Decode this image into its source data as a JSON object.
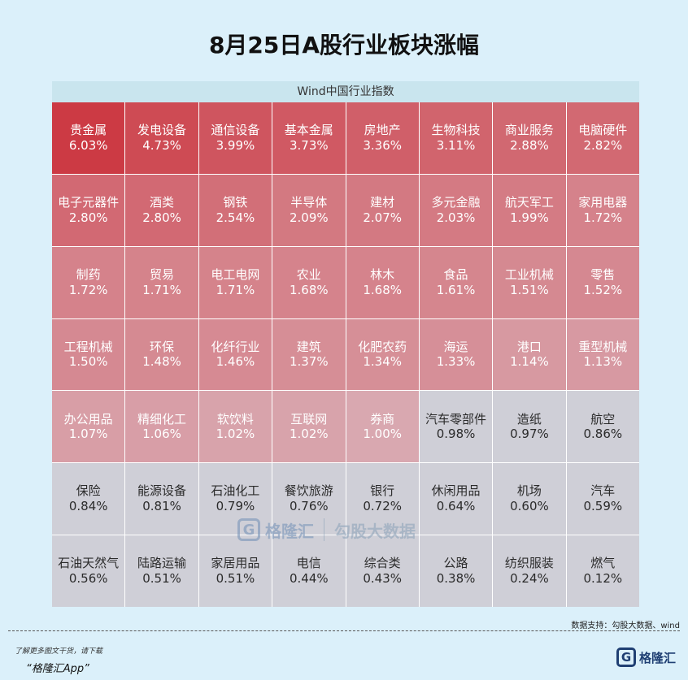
{
  "title": "8月25日A股行业板块涨幅",
  "source_note": "数据支持：勾股大数据、wind",
  "watermark": {
    "brand": "格隆汇",
    "logo_letter": "G",
    "right_text": "勾股大数据"
  },
  "footer": {
    "line1": "了解更多图文干货，请下载",
    "line2": "“格隆汇App”"
  },
  "logo": {
    "letter": "G",
    "text": "格隆汇"
  },
  "colors": {
    "high": "#cc3a44",
    "mid": "#d9a8b0",
    "low": "#cfcfd7"
  },
  "chart_data": {
    "type": "heatmap",
    "title": "Wind中国行业指数",
    "columns": 8,
    "unit": "%",
    "cells": [
      {
        "name": "贵金属",
        "value": 6.03
      },
      {
        "name": "发电设备",
        "value": 4.73
      },
      {
        "name": "通信设备",
        "value": 3.99
      },
      {
        "name": "基本金属",
        "value": 3.73
      },
      {
        "name": "房地产",
        "value": 3.36
      },
      {
        "name": "生物科技",
        "value": 3.11
      },
      {
        "name": "商业服务",
        "value": 2.88
      },
      {
        "name": "电脑硬件",
        "value": 2.82
      },
      {
        "name": "电子元器件",
        "value": 2.8
      },
      {
        "name": "酒类",
        "value": 2.8
      },
      {
        "name": "钢铁",
        "value": 2.54
      },
      {
        "name": "半导体",
        "value": 2.09
      },
      {
        "name": "建材",
        "value": 2.07
      },
      {
        "name": "多元金融",
        "value": 2.03
      },
      {
        "name": "航天军工",
        "value": 1.99
      },
      {
        "name": "家用电器",
        "value": 1.72
      },
      {
        "name": "制药",
        "value": 1.72
      },
      {
        "name": "贸易",
        "value": 1.71
      },
      {
        "name": "电工电网",
        "value": 1.71
      },
      {
        "name": "农业",
        "value": 1.68
      },
      {
        "name": "林木",
        "value": 1.68
      },
      {
        "name": "食品",
        "value": 1.61
      },
      {
        "name": "工业机械",
        "value": 1.51
      },
      {
        "name": "零售",
        "value": 1.52
      },
      {
        "name": "工程机械",
        "value": 1.5
      },
      {
        "name": "环保",
        "value": 1.48
      },
      {
        "name": "化纤行业",
        "value": 1.46
      },
      {
        "name": "建筑",
        "value": 1.37
      },
      {
        "name": "化肥农药",
        "value": 1.34
      },
      {
        "name": "海运",
        "value": 1.33
      },
      {
        "name": "港口",
        "value": 1.14
      },
      {
        "name": "重型机械",
        "value": 1.13
      },
      {
        "name": "办公用品",
        "value": 1.07
      },
      {
        "name": "精细化工",
        "value": 1.06
      },
      {
        "name": "软饮料",
        "value": 1.02
      },
      {
        "name": "互联网",
        "value": 1.02
      },
      {
        "name": "券商",
        "value": 1.0
      },
      {
        "name": "汽车零部件",
        "value": 0.98
      },
      {
        "name": "造纸",
        "value": 0.97
      },
      {
        "name": "航空",
        "value": 0.86
      },
      {
        "name": "保险",
        "value": 0.84
      },
      {
        "name": "能源设备",
        "value": 0.81
      },
      {
        "name": "石油化工",
        "value": 0.79
      },
      {
        "name": "餐饮旅游",
        "value": 0.76
      },
      {
        "name": "银行",
        "value": 0.72
      },
      {
        "name": "休闲用品",
        "value": 0.64
      },
      {
        "name": "机场",
        "value": 0.6
      },
      {
        "name": "汽车",
        "value": 0.59
      },
      {
        "name": "石油天然气",
        "value": 0.56
      },
      {
        "name": "陆路运输",
        "value": 0.51
      },
      {
        "name": "家居用品",
        "value": 0.51
      },
      {
        "name": "电信",
        "value": 0.44
      },
      {
        "name": "综合类",
        "value": 0.43
      },
      {
        "name": "公路",
        "value": 0.38
      },
      {
        "name": "纺织服装",
        "value": 0.24
      },
      {
        "name": "燃气",
        "value": 0.12
      }
    ]
  }
}
